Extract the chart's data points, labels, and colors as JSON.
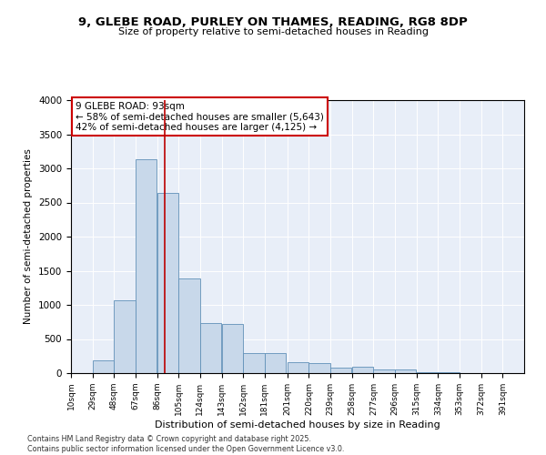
{
  "title_line1": "9, GLEBE ROAD, PURLEY ON THAMES, READING, RG8 8DP",
  "title_line2": "Size of property relative to semi-detached houses in Reading",
  "xlabel": "Distribution of semi-detached houses by size in Reading",
  "ylabel": "Number of semi-detached properties",
  "bar_color": "#c8d8ea",
  "bar_edge_color": "#6090b8",
  "background_color": "#e8eef8",
  "annotation_text": "9 GLEBE ROAD: 93sqm\n← 58% of semi-detached houses are smaller (5,643)\n42% of semi-detached houses are larger (4,125) →",
  "vline_x": 93,
  "vline_color": "#bb0000",
  "footer_line1": "Contains HM Land Registry data © Crown copyright and database right 2025.",
  "footer_line2": "Contains public sector information licensed under the Open Government Licence v3.0.",
  "categories": [
    "10sqm",
    "29sqm",
    "48sqm",
    "67sqm",
    "86sqm",
    "105sqm",
    "124sqm",
    "143sqm",
    "162sqm",
    "181sqm",
    "201sqm",
    "220sqm",
    "239sqm",
    "258sqm",
    "277sqm",
    "296sqm",
    "315sqm",
    "334sqm",
    "353sqm",
    "372sqm",
    "391sqm"
  ],
  "bin_edges": [
    10,
    29,
    48,
    67,
    86,
    105,
    124,
    143,
    162,
    181,
    201,
    220,
    239,
    258,
    277,
    296,
    315,
    334,
    353,
    372,
    391
  ],
  "bin_width": 19,
  "values": [
    5,
    190,
    1070,
    3130,
    2640,
    1390,
    730,
    720,
    300,
    295,
    155,
    150,
    85,
    90,
    55,
    48,
    18,
    8,
    4,
    2,
    1
  ],
  "ylim": [
    0,
    4000
  ],
  "yticks": [
    0,
    500,
    1000,
    1500,
    2000,
    2500,
    3000,
    3500,
    4000
  ]
}
